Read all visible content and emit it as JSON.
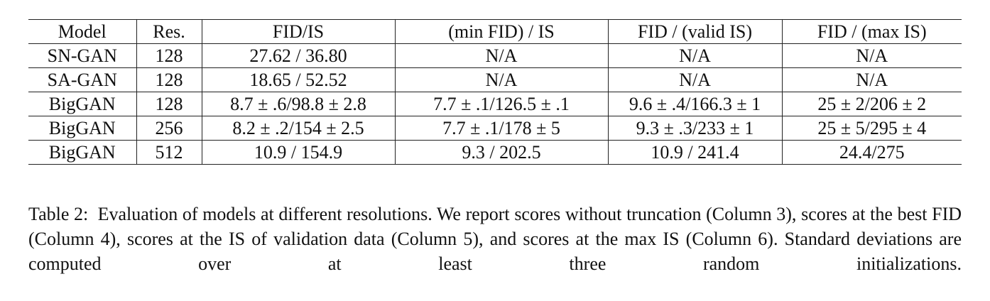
{
  "table": {
    "header": [
      "Model",
      "Res.",
      "FID/IS",
      "(min FID) / IS",
      "FID / (valid IS)",
      "FID / (max IS)"
    ],
    "rows": [
      [
        "SN-GAN",
        "128",
        "27.62 / 36.80",
        "N/A",
        "N/A",
        "N/A"
      ],
      [
        "SA-GAN",
        "128",
        "18.65 / 52.52",
        "N/A",
        "N/A",
        "N/A"
      ],
      [
        "BigGAN",
        "128",
        "8.7 ± .6/98.8 ± 2.8",
        "7.7 ± .1/126.5 ± .1",
        "9.6 ± .4/166.3 ± 1",
        "25 ± 2/206 ± 2"
      ],
      [
        "BigGAN",
        "256",
        "8.2 ± .2/154 ± 2.5",
        "7.7 ± .1/178 ± 5",
        "9.3 ± .3/233 ± 1",
        "25 ± 5/295 ± 4"
      ],
      [
        "BigGAN",
        "512",
        "10.9 / 154.9",
        "9.3 / 202.5",
        "10.9 / 241.4",
        "24.4/275"
      ]
    ]
  },
  "caption": {
    "label": "Table 2:",
    "text": "Evaluation of models at different resolutions. We report scores without truncation (Column 3), scores at the best FID (Column 4), scores at the IS of validation data (Column 5), and scores at the max IS (Column 6). Standard deviations are computed over at least three random initializations."
  }
}
